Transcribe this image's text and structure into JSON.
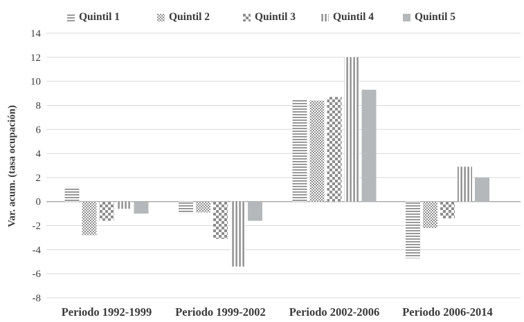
{
  "chart_data": {
    "type": "bar",
    "title": "",
    "xlabel": "",
    "ylabel": "Var. acum. (tasa ocupación)",
    "categories": [
      "Periodo 1992-1999",
      "Periodo 1999-2002",
      "Periodo 2002-2006",
      "Periodo 2006-2014"
    ],
    "series": [
      {
        "name": "Quintil 1",
        "pattern": "horizontal-stripes",
        "values": [
          1.2,
          -1.0,
          8.5,
          -4.7
        ]
      },
      {
        "name": "Quintil 2",
        "pattern": "diagonal-dots",
        "values": [
          -2.8,
          -0.9,
          8.4,
          -2.2
        ]
      },
      {
        "name": "Quintil 3",
        "pattern": "checkerboard",
        "values": [
          -1.6,
          -3.1,
          8.7,
          -1.4
        ]
      },
      {
        "name": "Quintil 4",
        "pattern": "vertical-stripes",
        "values": [
          -0.6,
          -5.4,
          12.0,
          2.9
        ]
      },
      {
        "name": "Quintil 5",
        "pattern": "solid",
        "values": [
          -1.0,
          -1.6,
          9.3,
          2.0
        ]
      }
    ],
    "ylim": [
      -8,
      14
    ],
    "yticks": [
      14,
      12,
      10,
      8,
      6,
      4,
      2,
      0,
      -2,
      -4,
      -6,
      -8
    ],
    "grid": true,
    "legend_position": "top",
    "colors": {
      "pattern_gray": "#8e8e8e",
      "solid_gray": "#b5b8ba",
      "gridline": "#d9d9d9",
      "zero_line": "#a0a0a0",
      "text": "#3a3a3a"
    }
  }
}
